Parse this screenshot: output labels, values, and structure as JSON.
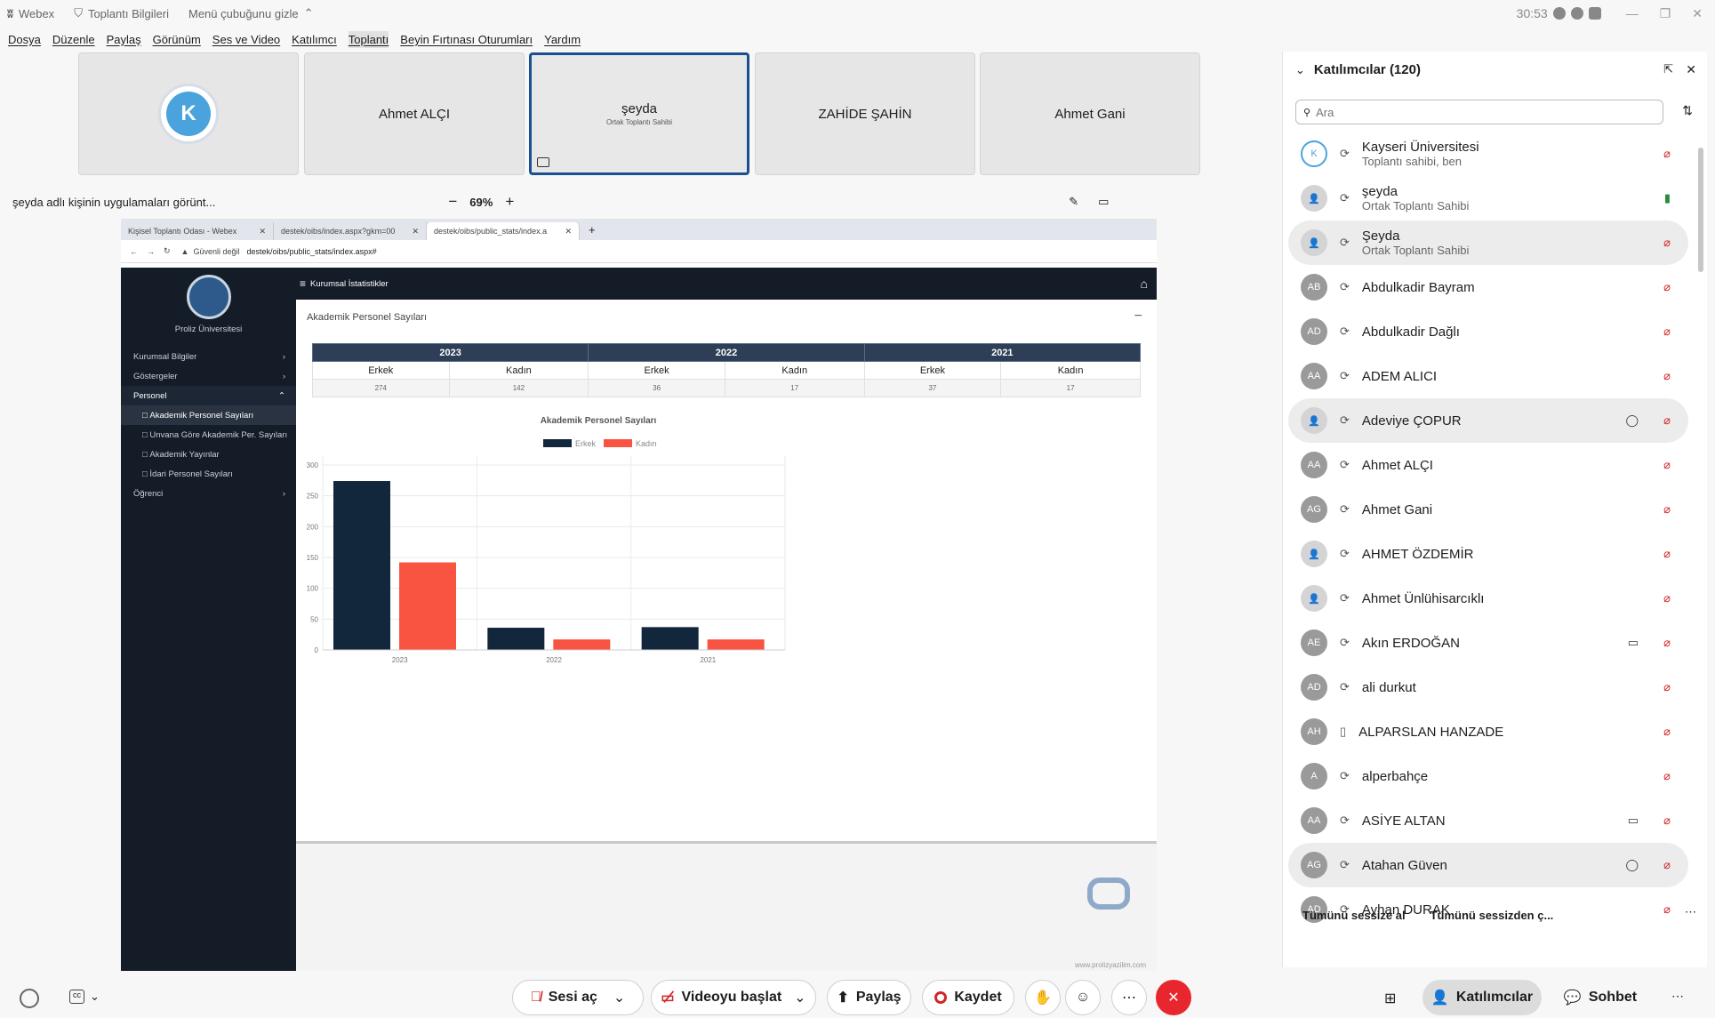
{
  "titlebar": {
    "app_name": "Webex",
    "meeting_info": "Toplantı Bilgileri",
    "hide_menu": "Menü çubuğunu gizle",
    "timer": "30:53"
  },
  "menu": [
    "Dosya",
    "Düzenle",
    "Paylaş",
    "Görünüm",
    "Ses ve Video",
    "Katılımcı",
    "Toplantı",
    "Beyin Fırtınası Oturumları",
    "Yardım"
  ],
  "tiles": [
    {
      "name": "",
      "sub": "",
      "logo": "kayseri-university-logo"
    },
    {
      "name": "Ahmet ALÇI",
      "sub": ""
    },
    {
      "name": "şeyda",
      "sub": "Ortak Toplantı Sahibi"
    },
    {
      "name": "ZAHİDE ŞAHİN",
      "sub": ""
    },
    {
      "name": "Ahmet Gani",
      "sub": ""
    }
  ],
  "sharebar": {
    "text": "şeyda adlı kişinin uygulamaları görünt...",
    "zoom": "69%"
  },
  "shared_browser": {
    "tabs": [
      "Kişisel Toplantı Odası - Webex",
      "destek/oibs/index.aspx?gkm=00",
      "destek/oibs/public_stats/index.a"
    ],
    "security": "Güvenli değil",
    "url": "destek/oibs/public_stats/index.aspx#"
  },
  "site": {
    "university": "Proliz Üniversitesi",
    "topnav_title": "Kurumsal İstatistikler",
    "menu": [
      {
        "label": "Kurumsal Bilgiler"
      },
      {
        "label": "Göstergeler"
      },
      {
        "label": "Personel"
      },
      {
        "label": "Öğrenci"
      }
    ],
    "submenu": [
      "Akademik Personel Sayıları",
      "Unvana Göre Akademik Per. Sayıları",
      "Akademik Yayınlar",
      "İdari Personel Sayıları"
    ],
    "section_title": "Akademik Personel Sayıları",
    "table": {
      "years": [
        "2023",
        "2022",
        "2021"
      ],
      "genders": [
        "Erkek",
        "Kadın",
        "Erkek",
        "Kadın",
        "Erkek",
        "Kadın"
      ],
      "values": [
        "274",
        "142",
        "36",
        "17",
        "37",
        "17"
      ]
    },
    "footer": "www.prolizyazilim.com"
  },
  "chart_data": {
    "type": "bar",
    "title": "Akademik Personel Sayıları",
    "categories": [
      "2023",
      "2022",
      "2021"
    ],
    "series": [
      {
        "name": "Erkek",
        "values": [
          274,
          36,
          37
        ],
        "color": "#12263c"
      },
      {
        "name": "Kadın",
        "values": [
          142,
          17,
          17
        ],
        "color": "#f85441"
      }
    ],
    "yticks": [
      "0",
      "50",
      "100",
      "150",
      "200",
      "250",
      "300"
    ],
    "ylim": [
      0,
      300
    ],
    "legend": "top",
    "grid": true
  },
  "panel": {
    "title": "Katılımcılar (120)",
    "search_placeholder": "Ara",
    "participants": [
      {
        "initials": "",
        "name": "Kayseri Üniversitesi",
        "sub": "Toplantı sahibi, ben",
        "kind": "logo",
        "extra": ""
      },
      {
        "initials": "",
        "name": "şeyda",
        "sub": "Ortak Toplantı Sahibi",
        "kind": "person-share",
        "extra": ""
      },
      {
        "initials": "",
        "name": "Şeyda",
        "sub": "Ortak Toplantı Sahibi",
        "kind": "person",
        "extra": ""
      },
      {
        "initials": "AB",
        "name": "Abdulkadir Bayram",
        "sub": "",
        "kind": "initials",
        "extra": ""
      },
      {
        "initials": "AD",
        "name": "Abdulkadir Dağlı",
        "sub": "",
        "kind": "initials",
        "extra": ""
      },
      {
        "initials": "AA",
        "name": "ADEM ALICI",
        "sub": "",
        "kind": "initials",
        "extra": ""
      },
      {
        "initials": "",
        "name": "Adeviye ÇOPUR",
        "sub": "",
        "kind": "person",
        "extra": "chat"
      },
      {
        "initials": "AA",
        "name": "Ahmet ALÇI",
        "sub": "",
        "kind": "initials",
        "extra": ""
      },
      {
        "initials": "AG",
        "name": "Ahmet Gani",
        "sub": "",
        "kind": "initials",
        "extra": ""
      },
      {
        "initials": "",
        "name": "AHMET ÖZDEMİR",
        "sub": "",
        "kind": "person",
        "extra": ""
      },
      {
        "initials": "",
        "name": "Ahmet Ünlühisarcıklı",
        "sub": "",
        "kind": "person",
        "extra": ""
      },
      {
        "initials": "AE",
        "name": "Akın ERDOĞAN",
        "sub": "",
        "kind": "initials",
        "extra": "video"
      },
      {
        "initials": "AD",
        "name": "ali durkut",
        "sub": "",
        "kind": "initials",
        "extra": ""
      },
      {
        "initials": "AH",
        "name": "ALPARSLAN HANZADE",
        "sub": "",
        "kind": "initials",
        "extra": ""
      },
      {
        "initials": "A",
        "name": "alperbahçe",
        "sub": "",
        "kind": "initials",
        "extra": ""
      },
      {
        "initials": "AA",
        "name": "ASİYE ALTAN",
        "sub": "",
        "kind": "initials",
        "extra": "video"
      },
      {
        "initials": "AG",
        "name": "Atahan Güven",
        "sub": "",
        "kind": "initials",
        "extra": "chat"
      },
      {
        "initials": "AD",
        "name": "Ayhan DURAK",
        "sub": "",
        "kind": "initials",
        "extra": ""
      }
    ],
    "mute_all": "Tümünü sessize al",
    "unmute_all": "Tümünü sessizden ç..."
  },
  "toolbar": {
    "unmute": "Sesi aç",
    "start_video": "Videoyu başlat",
    "share": "Paylaş",
    "record": "Kaydet",
    "participants": "Katılımcılar",
    "chat": "Sohbet"
  },
  "colors": {
    "accent": "#1b4f8f",
    "mute_red": "#d1262a",
    "end_red": "#e8262d"
  }
}
